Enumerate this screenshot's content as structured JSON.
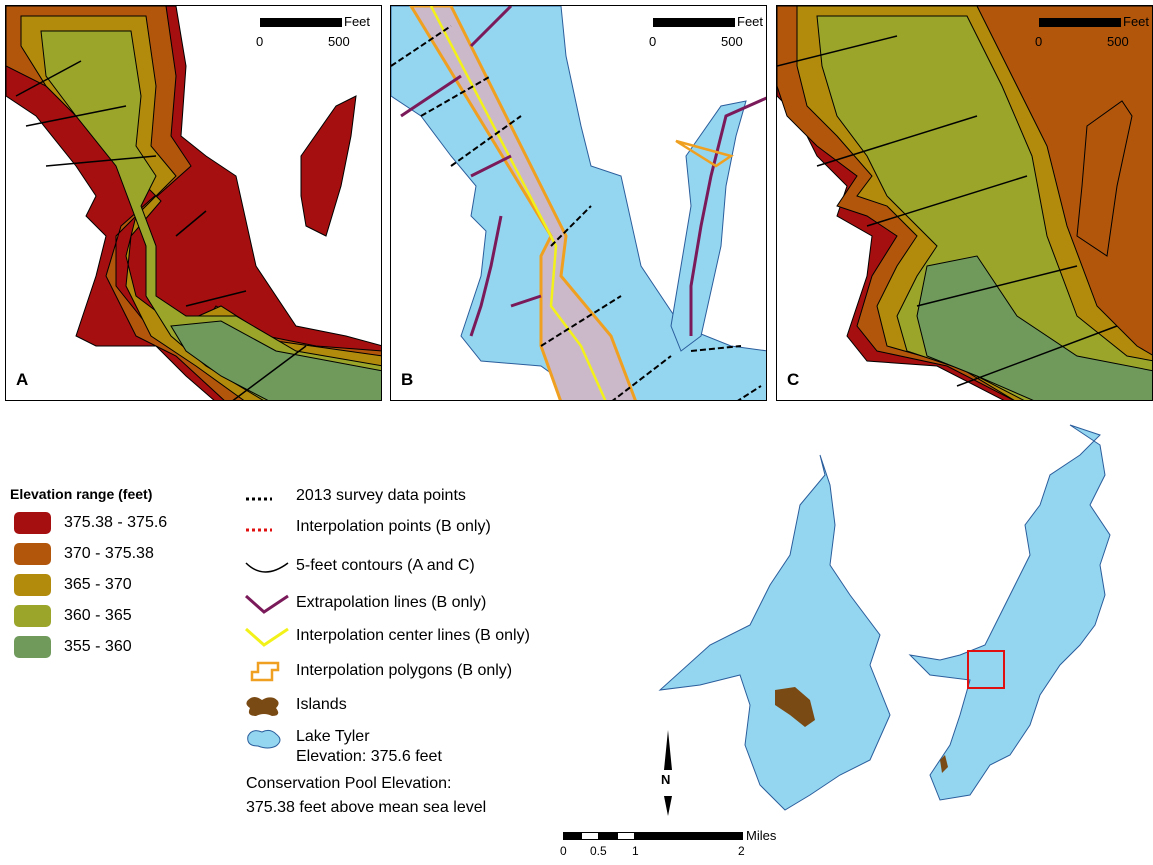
{
  "panels": [
    {
      "label": "A",
      "scale_unit": "Feet",
      "scale_ticks": [
        "0",
        "500"
      ]
    },
    {
      "label": "B",
      "scale_unit": "Feet",
      "scale_ticks": [
        "0",
        "500"
      ]
    },
    {
      "label": "C",
      "scale_unit": "Feet",
      "scale_ticks": [
        "0",
        "500"
      ]
    }
  ],
  "elevation_legend": {
    "title": "Elevation range (feet)",
    "items": [
      {
        "label": "375.38 - 375.6",
        "color": "#a50f0f"
      },
      {
        "label": "370 - 375.38",
        "color": "#b2560c"
      },
      {
        "label": "365 - 370",
        "color": "#b28b0c"
      },
      {
        "label": "360 - 365",
        "color": "#9aa52a"
      },
      {
        "label": "355 - 360",
        "color": "#6f9a5c"
      }
    ]
  },
  "symbol_legend": [
    {
      "label": "2013 survey data points",
      "icon": "black-dotted-line"
    },
    {
      "label": "Interpolation points (B only)",
      "icon": "red-dotted-line"
    },
    {
      "label": "5-feet contours (A and C)",
      "icon": "black-curve"
    },
    {
      "label": "Extrapolation lines (B only)",
      "icon": "purple-zigzag"
    },
    {
      "label": "Interpolation center lines (B only)",
      "icon": "yellow-zigzag"
    },
    {
      "label": "Interpolation polygons (B only)",
      "icon": "orange-polygon"
    },
    {
      "label": "Islands",
      "icon": "brown-blob"
    },
    {
      "label": "Lake Tyler",
      "label2": "Elevation: 375.6 feet",
      "icon": "blue-blob"
    }
  ],
  "conservation": {
    "line1": "Conservation Pool Elevation:",
    "line2": "375.38 feet above mean sea level"
  },
  "overview_map": {
    "north_label": "N",
    "scale_unit": "Miles",
    "scale_ticks": [
      "0",
      "0.5",
      "1",
      "2"
    ]
  },
  "colors": {
    "lake": "#94d6f0",
    "island": "#7a4a14",
    "extrapolation": "#7b1a5a",
    "center_line": "#f2f21a",
    "polygon": "#f0a020",
    "locator_box": "#e01010"
  }
}
